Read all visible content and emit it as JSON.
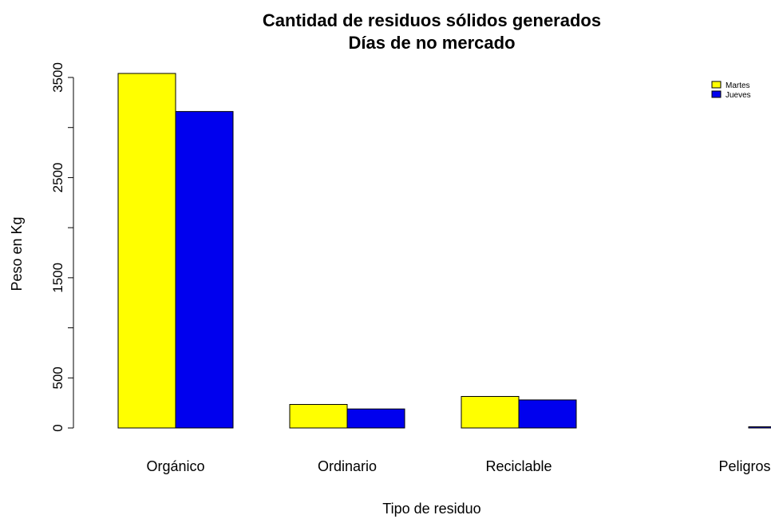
{
  "chart_data": {
    "type": "bar",
    "title": "Cantidad de residuos sólidos generados",
    "subtitle": "Días de no mercado",
    "xlabel": "Tipo de residuo",
    "ylabel": "Peso en Kg",
    "categories": [
      "Orgánico",
      "Ordinario",
      "Reciclable",
      "Peligroso"
    ],
    "series": [
      {
        "name": "Martes",
        "color": "#ffff00",
        "values": [
          3540,
          235,
          315,
          0
        ]
      },
      {
        "name": "Jueves",
        "color": "#0000ee",
        "values": [
          3160,
          190,
          280,
          12
        ]
      }
    ],
    "yticks": [
      0,
      500,
      1500,
      2500,
      3500
    ],
    "ylim": [
      0,
      3500
    ],
    "grid": false,
    "legend_position": "top-right"
  }
}
